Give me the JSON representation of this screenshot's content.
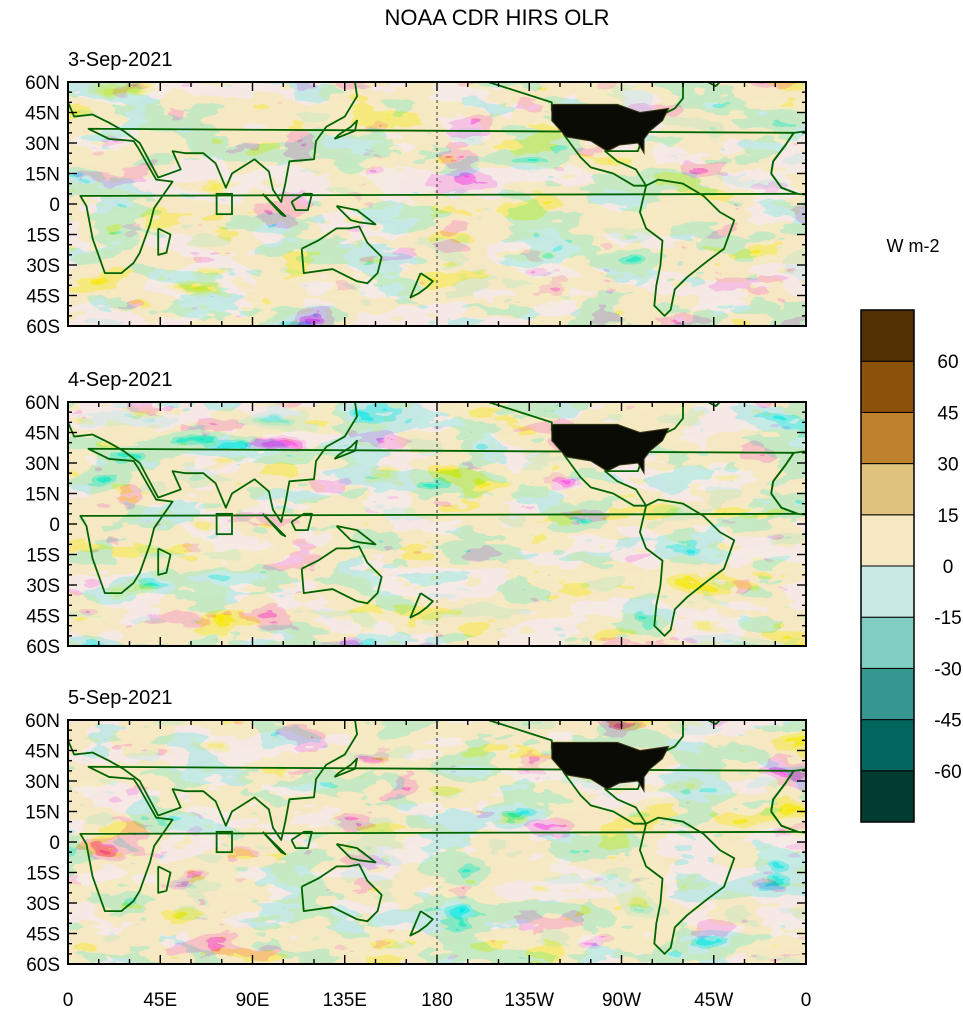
{
  "chart_data": {
    "type": "heatmap",
    "title": "NOAA CDR HIRS OLR",
    "units": "W m-2",
    "panels": [
      {
        "date": "3-Sep-2021"
      },
      {
        "date": "4-Sep-2021"
      },
      {
        "date": "5-Sep-2021"
      }
    ],
    "x_ticks": [
      {
        "lon": 0,
        "label": "0"
      },
      {
        "lon": 45,
        "label": "45E"
      },
      {
        "lon": 90,
        "label": "90E"
      },
      {
        "lon": 135,
        "label": "135E"
      },
      {
        "lon": 180,
        "label": "180"
      },
      {
        "lon": 225,
        "label": "135W"
      },
      {
        "lon": 270,
        "label": "90W"
      },
      {
        "lon": 315,
        "label": "45W"
      },
      {
        "lon": 360,
        "label": "0"
      }
    ],
    "y_ticks": [
      {
        "lat": 60,
        "label": "60N"
      },
      {
        "lat": 45,
        "label": "45N"
      },
      {
        "lat": 30,
        "label": "30N"
      },
      {
        "lat": 15,
        "label": "15N"
      },
      {
        "lat": 0,
        "label": "0"
      },
      {
        "lat": -15,
        "label": "15S"
      },
      {
        "lat": -30,
        "label": "30S"
      },
      {
        "lat": -45,
        "label": "45S"
      },
      {
        "lat": -60,
        "label": "60S"
      }
    ],
    "lon_range": [
      0,
      360
    ],
    "lat_range": [
      -60,
      60
    ],
    "colorbar": {
      "colors": [
        "#003c30",
        "#01665e",
        "#35978f",
        "#80cdc1",
        "#c7eae5",
        "#f6e8c3",
        "#dfc27d",
        "#bf812d",
        "#8c510a",
        "#543005"
      ],
      "levels": [
        -60,
        -45,
        -30,
        -15,
        0,
        15,
        30,
        45,
        60
      ],
      "level_labels": [
        "-60",
        "-45",
        "-30",
        "-15",
        "0",
        "15",
        "30",
        "45",
        "60"
      ]
    },
    "coastline_color": "#006400"
  }
}
